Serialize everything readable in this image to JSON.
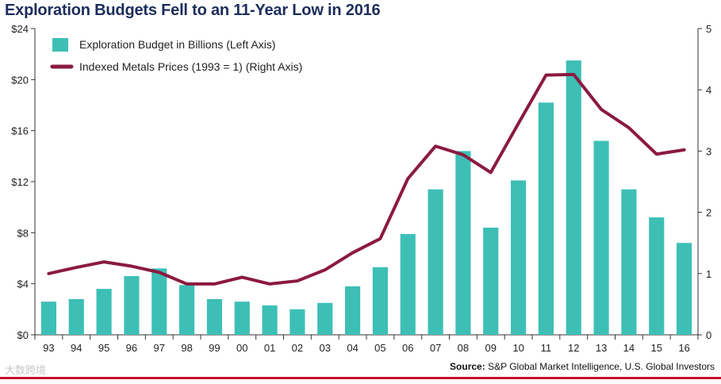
{
  "title": "Exploration Budgets Fell to an 11-Year Low in 2016",
  "source_label": "Source:",
  "source_text": "S&P Global Market Intelligence, U.S. Global Investors",
  "watermark": "大数跨境",
  "colors": {
    "bar": "#3dbfb6",
    "line": "#8b1a3f",
    "title": "#1c2d5c",
    "rule": "#c8102e"
  },
  "chart_data": {
    "type": "bar",
    "categories": [
      "93",
      "94",
      "95",
      "96",
      "97",
      "98",
      "99",
      "00",
      "01",
      "02",
      "03",
      "04",
      "05",
      "06",
      "07",
      "08",
      "09",
      "10",
      "11",
      "12",
      "13",
      "14",
      "15",
      "16"
    ],
    "left_axis": {
      "ticks": [
        "$0",
        "$4",
        "$8",
        "$12",
        "$16",
        "$20",
        "$24"
      ],
      "ylim": [
        0,
        24
      ]
    },
    "right_axis": {
      "ticks": [
        "0",
        "1",
        "2",
        "3",
        "4",
        "5"
      ],
      "ylim": [
        0,
        5
      ]
    },
    "series": [
      {
        "name": "Exploration Budget in Billions (Left Axis)",
        "type": "bar",
        "axis": "left",
        "values": [
          2.6,
          2.8,
          3.6,
          4.6,
          5.2,
          3.9,
          2.8,
          2.6,
          2.3,
          2.0,
          2.5,
          3.8,
          5.3,
          7.9,
          11.4,
          14.4,
          8.4,
          12.1,
          18.2,
          21.5,
          15.2,
          11.4,
          9.2,
          7.2
        ]
      },
      {
        "name": "Indexed Metals Prices (1993 = 1) (Right Axis)",
        "type": "line",
        "axis": "right",
        "values": [
          1.0,
          1.1,
          1.19,
          1.12,
          1.02,
          0.83,
          0.83,
          0.94,
          0.83,
          0.88,
          1.06,
          1.34,
          1.57,
          2.55,
          3.08,
          2.94,
          2.65,
          3.45,
          4.24,
          4.25,
          3.68,
          3.38,
          2.95,
          3.02
        ]
      }
    ],
    "legend_position": "top-left"
  }
}
